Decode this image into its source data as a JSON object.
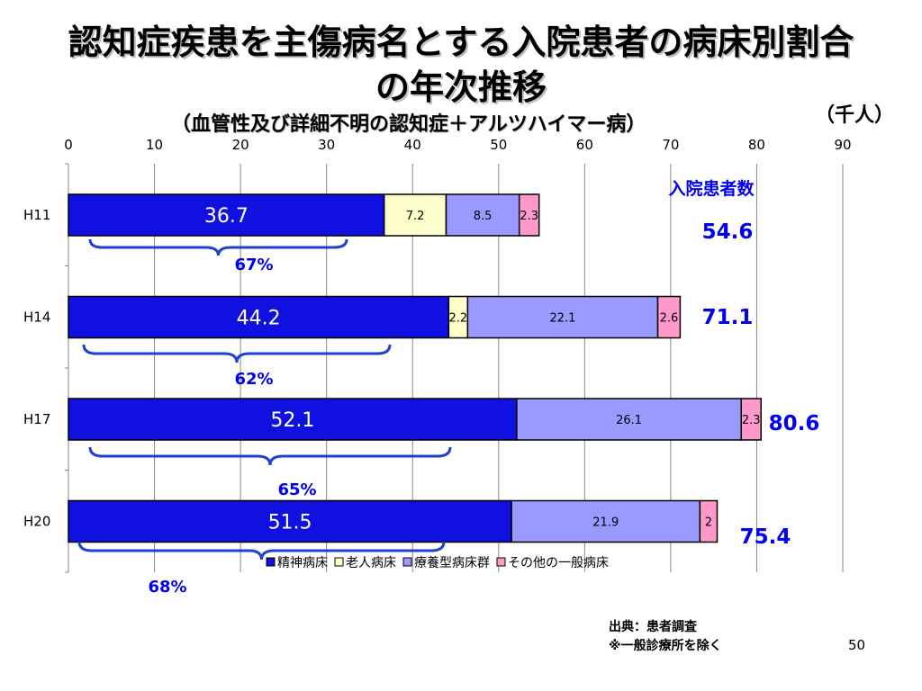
{
  "slide": {
    "title_line1": "認知症疾患を主傷病名とする入院患者の病床別割合",
    "title_line2": "の年次推移",
    "subtitle": "（血管性及び詳細不明の認知症＋アルツハイマー病）",
    "unit": "（千人）",
    "source_line1": "出典：患者調査",
    "source_line2": "※一般診療所を除く",
    "page_number": "50"
  },
  "chart_data": {
    "type": "bar",
    "orientation": "horizontal",
    "stacked": true,
    "categories": [
      "H11",
      "H14",
      "H17",
      "H20"
    ],
    "series": [
      {
        "name": "精神病床",
        "color": "#1010e0",
        "values": [
          36.7,
          44.2,
          52.1,
          51.5
        ],
        "labels": [
          "36.7",
          "44.2",
          "52.1",
          "51.5"
        ]
      },
      {
        "name": "老人病床",
        "color": "#ffffcc",
        "values": [
          7.2,
          2.2,
          0,
          0
        ],
        "labels": [
          "7.2",
          "2.2",
          "",
          ""
        ]
      },
      {
        "name": "療養型病床群",
        "color": "#9999ff",
        "values": [
          8.5,
          22.1,
          26.1,
          21.9
        ],
        "labels": [
          "8.5",
          "22.1",
          "26.1",
          "21.9"
        ]
      },
      {
        "name": "その他の一般病床",
        "color": "#ff99cc",
        "values": [
          2.3,
          2.6,
          2.3,
          2
        ],
        "labels": [
          "2.3",
          "2.6",
          "2.3",
          "2"
        ]
      }
    ],
    "totals_title": "入院患者数",
    "totals": [
      "54.6",
      "71.1",
      "80.6",
      "75.4"
    ],
    "percent_annotations": [
      "67%",
      "62%",
      "65%",
      "68%"
    ],
    "xlim": [
      0,
      90
    ],
    "xticks": [
      "0",
      "10",
      "20",
      "30",
      "40",
      "50",
      "60",
      "70",
      "80",
      "90"
    ],
    "grid": true,
    "legend_position": "bottom",
    "colors": {
      "label_blue": "#0000ee",
      "brace": "#2040d0"
    }
  }
}
